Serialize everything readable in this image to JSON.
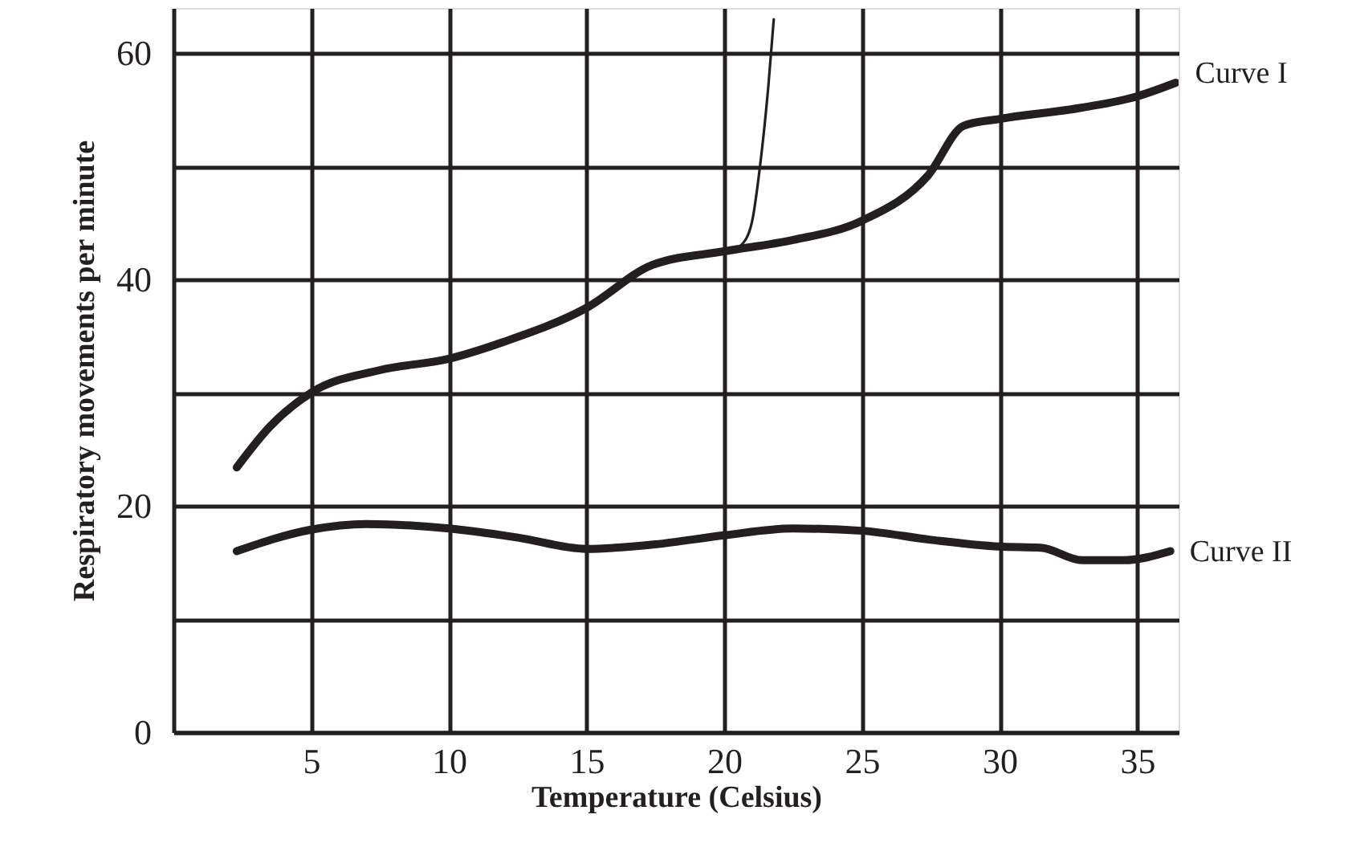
{
  "chart_data": {
    "type": "line",
    "xlabel": "Temperature (Celsius)",
    "ylabel": "Respiratory movements per minute",
    "xlim": [
      0,
      36.5
    ],
    "xticks": [
      5,
      10,
      15,
      20,
      25,
      30,
      35
    ],
    "ylim": [
      0,
      64
    ],
    "yticks": [
      0,
      {
        "value": 10,
        "label": null
      },
      20,
      {
        "value": 30,
        "label": null
      },
      40,
      {
        "value": 50,
        "label": null
      },
      60
    ],
    "grid": true,
    "legend": false,
    "marker": "none",
    "line_style": "solid",
    "series": [
      {
        "name": "Curve I",
        "color": "#231f20",
        "x": [
          2.3,
          3.5,
          5,
          7.5,
          10,
          12,
          15,
          17.4,
          20,
          22.5,
          25,
          27.4,
          28.7,
          30,
          33,
          35,
          36.4
        ],
        "values": [
          23.4,
          27,
          30,
          32,
          33,
          34.5,
          37.5,
          41.3,
          42.5,
          43.5,
          45.2,
          49.2,
          53.6,
          54.2,
          55.2,
          56.2,
          57.4
        ]
      },
      {
        "name": "Curve II",
        "color": "#231f20",
        "x": [
          2.3,
          5,
          7,
          10,
          12.5,
          15,
          17.5,
          20,
          22.5,
          25,
          27.5,
          30,
          31.5,
          33,
          34.5,
          36.2
        ],
        "values": [
          16,
          17.9,
          18.4,
          18,
          17.2,
          16.2,
          16.6,
          17.4,
          18,
          17.8,
          17,
          16.4,
          16.3,
          15.2,
          15.2,
          16
        ]
      },
      {
        "color": "#231f20",
        "x": [
          20.6,
          21,
          21.3,
          21.6,
          21.8
        ],
        "values": [
          43,
          45,
          50,
          57,
          63
        ]
      }
    ]
  }
}
